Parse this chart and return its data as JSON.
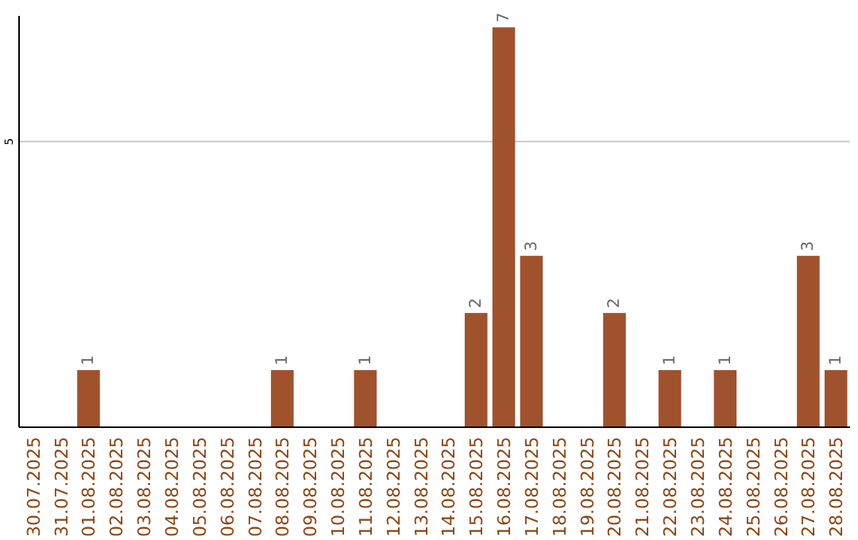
{
  "chart_data": {
    "type": "bar",
    "categories": [
      "30.07.2025",
      "31.07.2025",
      "01.08.2025",
      "02.08.2025",
      "03.08.2025",
      "04.08.2025",
      "05.08.2025",
      "06.08.2025",
      "07.08.2025",
      "08.08.2025",
      "09.08.2025",
      "10.08.2025",
      "11.08.2025",
      "12.08.2025",
      "13.08.2025",
      "14.08.2025",
      "15.08.2025",
      "16.08.2025",
      "17.08.2025",
      "18.08.2025",
      "19.08.2025",
      "20.08.2025",
      "21.08.2025",
      "22.08.2025",
      "23.08.2025",
      "24.08.2025",
      "25.08.2025",
      "26.08.2025",
      "27.08.2025",
      "28.08.2025"
    ],
    "values": [
      null,
      null,
      1,
      null,
      null,
      null,
      null,
      null,
      null,
      1,
      null,
      null,
      1,
      null,
      null,
      null,
      2,
      7,
      3,
      null,
      null,
      2,
      null,
      1,
      null,
      1,
      null,
      null,
      3,
      1
    ],
    "color": "#a0522d",
    "ylim": [
      0,
      7.2
    ],
    "yticks": [
      5
    ],
    "grid": "y",
    "data_labels": true
  }
}
